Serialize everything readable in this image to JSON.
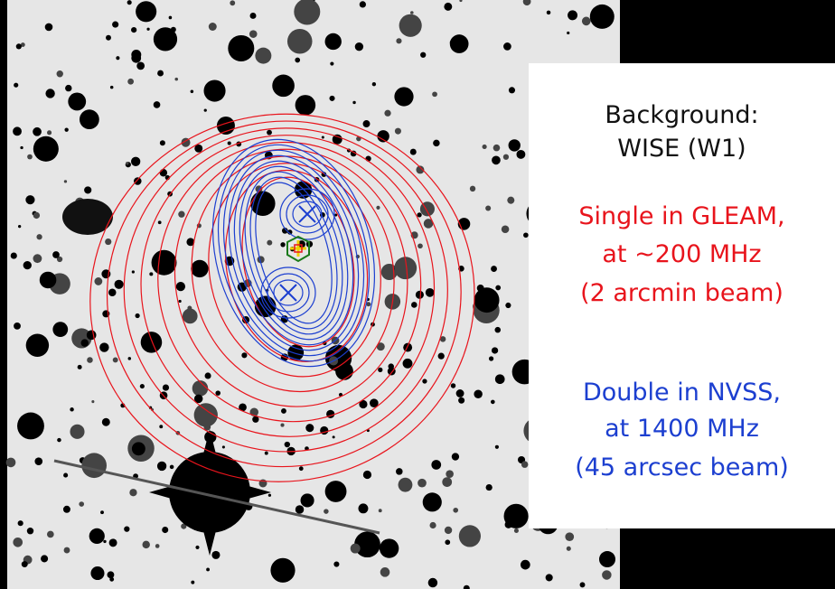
{
  "legend": {
    "background": [
      "Background:",
      "WISE (W1)"
    ],
    "gleam": [
      "Single in GLEAM,",
      "at ~200 MHz",
      "(2 arcmin beam)"
    ],
    "nvss": [
      "Double in NVSS,",
      "at 1400 MHz",
      "(45 arcsec beam)"
    ]
  }
}
